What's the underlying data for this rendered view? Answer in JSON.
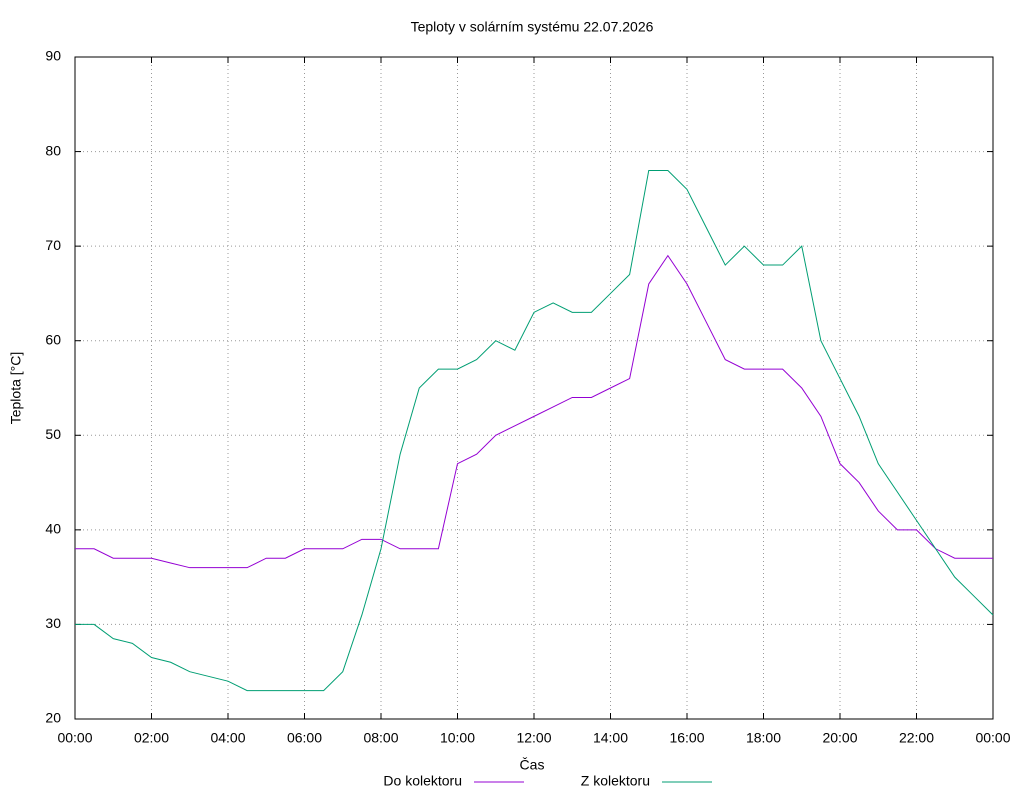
{
  "chart_data": {
    "type": "line",
    "title": "Teploty v solárním systému 22.07.2026",
    "xlabel": "Čas",
    "ylabel": "Teplota [°C]",
    "x": [
      0,
      0.5,
      1,
      1.5,
      2,
      2.5,
      3,
      3.5,
      4,
      4.5,
      5,
      5.5,
      6,
      6.5,
      7,
      7.5,
      8,
      8.5,
      9,
      9.5,
      10,
      10.5,
      11,
      11.5,
      12,
      12.5,
      13,
      13.5,
      14,
      14.5,
      15,
      15.5,
      16,
      16.5,
      17,
      17.5,
      18,
      18.5,
      19,
      19.5,
      20,
      20.5,
      21,
      21.5,
      22,
      22.5,
      23,
      23.5,
      24
    ],
    "series": [
      {
        "name": "Do kolektoru",
        "color": "#9400d3",
        "values": [
          38,
          38,
          37,
          37,
          37,
          36.5,
          36,
          36,
          36,
          36,
          37,
          37,
          38,
          38,
          38,
          39,
          39,
          38,
          38,
          38,
          47,
          48,
          50,
          51,
          52,
          53,
          54,
          54,
          55,
          56,
          66,
          69,
          66,
          62,
          58,
          57,
          57,
          57,
          55,
          52,
          47,
          45,
          42,
          40,
          40,
          38,
          37,
          37,
          37
        ]
      },
      {
        "name": "Z kolektoru",
        "color": "#009e73",
        "values": [
          30,
          30,
          28.5,
          28,
          26.5,
          26,
          25,
          24.5,
          24,
          23,
          23,
          23,
          23,
          23,
          25,
          31,
          38,
          48,
          55,
          57,
          57,
          58,
          60,
          59,
          63,
          64,
          63,
          63,
          65,
          67,
          78,
          78,
          76,
          72,
          68,
          70,
          68,
          68,
          70,
          60,
          56,
          52,
          47,
          44,
          41,
          38,
          35,
          33,
          31
        ]
      }
    ],
    "xlim": [
      0,
      24
    ],
    "xticks": [
      {
        "value": 0,
        "label": "00:00"
      },
      {
        "value": 2,
        "label": "02:00"
      },
      {
        "value": 4,
        "label": "04:00"
      },
      {
        "value": 6,
        "label": "06:00"
      },
      {
        "value": 8,
        "label": "08:00"
      },
      {
        "value": 10,
        "label": "10:00"
      },
      {
        "value": 12,
        "label": "12:00"
      },
      {
        "value": 14,
        "label": "14:00"
      },
      {
        "value": 16,
        "label": "16:00"
      },
      {
        "value": 18,
        "label": "18:00"
      },
      {
        "value": 20,
        "label": "20:00"
      },
      {
        "value": 22,
        "label": "22:00"
      },
      {
        "value": 24,
        "label": "00:00"
      }
    ],
    "ylim": [
      20,
      90
    ],
    "yticks": [
      20,
      30,
      40,
      50,
      60,
      70,
      80,
      90
    ],
    "grid": true,
    "legend": "bottom"
  }
}
